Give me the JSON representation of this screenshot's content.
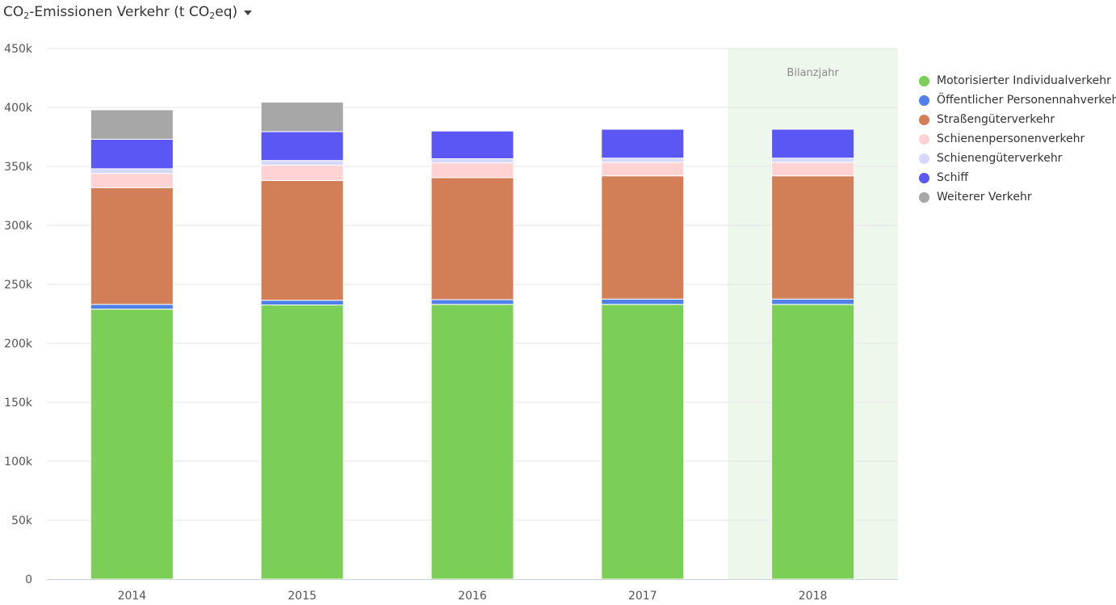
{
  "header": {
    "title_prefix": "CO",
    "title_sub1": "2",
    "title_mid": "-Emissionen Verkehr (t CO",
    "title_sub2": "2",
    "title_suffix": "eq)",
    "dropdown_icon": "caret-down-icon"
  },
  "chart_data": {
    "type": "bar",
    "stacked": true,
    "categories": [
      "2014",
      "2015",
      "2016",
      "2017",
      "2018"
    ],
    "highlight": {
      "category": "2018",
      "label": "Bilanzjahr",
      "color": "#eef7ec"
    },
    "ylim": [
      0,
      450000
    ],
    "yticks": [
      0,
      50000,
      100000,
      150000,
      200000,
      250000,
      300000,
      350000,
      400000,
      450000
    ],
    "ytick_labels": [
      "0",
      "50k",
      "100k",
      "150k",
      "200k",
      "250k",
      "300k",
      "350k",
      "400k",
      "450k"
    ],
    "grid": true,
    "legend_position": "right",
    "series": [
      {
        "name": "Motorisierter Individualverkehr",
        "color": "#7ccf56",
        "values": [
          229000,
          232500,
          233000,
          233000,
          233000
        ]
      },
      {
        "name": "Öffentlicher Personennahverkehr",
        "color": "#4f7fe8",
        "values": [
          4000,
          4000,
          4000,
          4500,
          4500
        ]
      },
      {
        "name": "Straßengüterverkehr",
        "color": "#d27f57",
        "values": [
          99000,
          101500,
          103500,
          104500,
          104500
        ]
      },
      {
        "name": "Schienenpersonenverkehr",
        "color": "#ffd2d4",
        "values": [
          12000,
          13000,
          12500,
          11500,
          11500
        ]
      },
      {
        "name": "Schienengüterverkehr",
        "color": "#d6d8fb",
        "values": [
          4000,
          4000,
          3500,
          3500,
          3500
        ]
      },
      {
        "name": "Schiff",
        "color": "#5b57f5",
        "values": [
          25000,
          24500,
          23500,
          24500,
          24500
        ]
      },
      {
        "name": "Weiterer Verkehr",
        "color": "#a7a7a7",
        "values": [
          25000,
          25000,
          0,
          0,
          0
        ]
      }
    ]
  }
}
